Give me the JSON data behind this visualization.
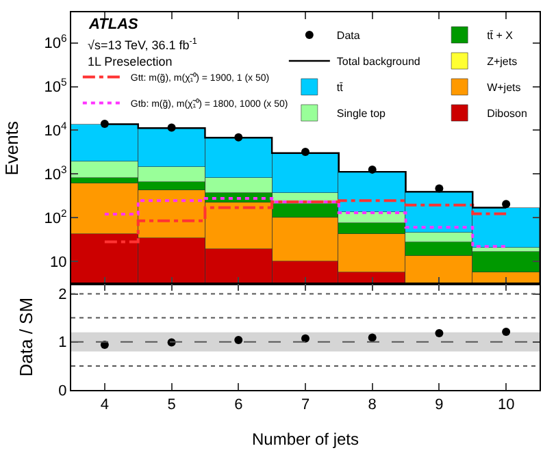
{
  "chart_data": [
    {
      "type": "bar",
      "stacked": true,
      "log": true,
      "ylabel": "Events",
      "x": [
        4,
        5,
        6,
        7,
        8,
        9,
        10
      ],
      "xlim": [
        3.5,
        10.5
      ],
      "xticks": [
        4,
        5,
        6,
        7,
        8,
        9,
        10
      ],
      "tick_labels": "y",
      "ylim": [
        3,
        5000000
      ],
      "yticks": [
        {
          "value": 10,
          "label": "10"
        },
        {
          "value": 100,
          "label": "10$^{2}$"
        },
        {
          "value": 1000,
          "label": "10$^{3}$"
        },
        {
          "value": 10000,
          "label": "10$^{4}$"
        },
        {
          "value": 100000,
          "label": "10$^{5}$"
        },
        {
          "value": 1000000,
          "label": "10$^{6}$"
        }
      ],
      "legend": "top right",
      "grid": false,
      "annotations": [
        "ATLAS",
        "√s=13 TeV, 36.1 fb$^{-1}$",
        "1L Preselection"
      ],
      "series": [
        {
          "name": "Gtb: m(g̃), m(χ̃₁⁰) = 1800, 1000 (x 50)",
          "type": "step",
          "line_style": "dotted",
          "color": "#ff33ff",
          "values": [
            120,
            245,
            275,
            230,
            130,
            60,
            22
          ]
        },
        {
          "name": "Gtt: m(g̃), m(χ̃₁⁰) = 1900, 1 (x 50)",
          "type": "step",
          "line_style": "dashdot",
          "color": "#ff3333",
          "values": [
            28,
            85,
            170,
            230,
            245,
            195,
            123
          ]
        },
        {
          "name": "Diboson",
          "type": "bar",
          "color": "#cc0000",
          "values": [
            42,
            34,
            19,
            10,
            5.6,
            null,
            null
          ]
        },
        {
          "name": "W+jets",
          "type": "bar",
          "color": "#ff9900",
          "values": [
            573,
            401,
            211,
            88,
            36,
            13,
            5.6
          ]
        },
        {
          "name": "Z+jets",
          "type": "bar",
          "color": "#ffff33",
          "values": [
            null,
            null,
            null,
            null,
            null,
            null,
            null
          ]
        },
        {
          "name": "tt̄ + X",
          "type": "bar",
          "color": "#009900",
          "values": [
            215,
            225,
            140,
            107,
            36,
            15,
            11
          ]
        },
        {
          "name": "Single top",
          "type": "bar",
          "color": "#99ff99",
          "values": [
            1170,
            820,
            460,
            165,
            57,
            18,
            4
          ]
        },
        {
          "name": "tt̄",
          "type": "bar",
          "color": "#00ccff",
          "values": [
            11800,
            9720,
            5930,
            2630,
            985,
            344,
            149
          ]
        },
        {
          "name": "Total background",
          "type": "step",
          "color": "#000000",
          "values": [
            13800,
            11200,
            6760,
            3000,
            1120,
            390,
            170
          ]
        },
        {
          "name": "Data",
          "type": "scatter",
          "marker": "circle",
          "color": "#000000",
          "values": [
            14000,
            11500,
            6900,
            3200,
            1260,
            465,
            205
          ]
        }
      ]
    },
    {
      "type": "scatter",
      "marker": "circle",
      "xlabel": "Number of jets",
      "ylabel": "Data / SM",
      "x": [
        4,
        5,
        6,
        7,
        8,
        9,
        10
      ],
      "xlim": [
        3.5,
        10.5
      ],
      "xticks": [
        4,
        5,
        6,
        7,
        8,
        9,
        10
      ],
      "ylim": [
        0,
        2.2
      ],
      "yticks": [
        0,
        1,
        2
      ],
      "grid": false,
      "series": [
        {
          "color": "#000000",
          "values": [
            0.94,
            0.99,
            1.04,
            1.07,
            1.09,
            1.18,
            1.21
          ]
        }
      ],
      "ref_lines": [
        {
          "axis": "y",
          "value": 0.5,
          "line_style": "dotted"
        },
        {
          "axis": "y",
          "value": 1,
          "line_style": "dashed"
        },
        {
          "axis": "y",
          "value": 1.5,
          "line_style": "dotted"
        },
        {
          "axis": "y",
          "value": 2,
          "line_style": "dotted"
        }
      ],
      "bands": [
        {
          "axis": "y",
          "from": 0.8,
          "to": 1.2,
          "color": "#888888"
        }
      ]
    }
  ]
}
